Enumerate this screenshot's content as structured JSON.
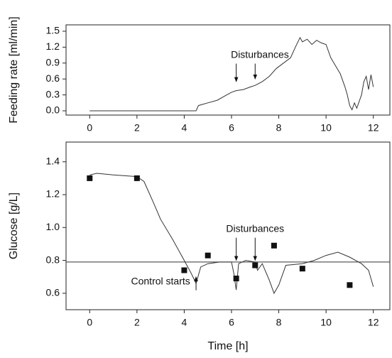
{
  "chart_data": [
    {
      "type": "line",
      "ylabel": "Feeding rate [ml/min]",
      "xlim": [
        -1,
        12.7
      ],
      "ylim": [
        -0.08,
        1.62
      ],
      "xticks": [
        0,
        2,
        4,
        6,
        8,
        10,
        12
      ],
      "yticks": [
        {
          "value": 0,
          "label": "0.0"
        },
        0.3,
        0.6,
        0.9,
        1.2,
        1.5
      ],
      "series": [
        {
          "color": "#333333",
          "x": [
            0,
            4.5,
            4.6,
            5.0,
            5.4,
            5.8,
            6.0,
            6.2,
            6.5,
            6.8,
            7.0,
            7.3,
            7.6,
            7.9,
            8.2,
            8.5,
            8.7,
            8.9,
            9.0,
            9.2,
            9.4,
            9.6,
            9.8,
            10.0,
            10.2,
            10.4,
            10.6,
            10.8,
            10.9,
            11.0,
            11.1,
            11.2,
            11.3,
            11.5,
            11.6,
            11.7,
            11.8,
            11.9,
            12.0
          ],
          "values": [
            0,
            0,
            0.1,
            0.15,
            0.2,
            0.3,
            0.35,
            0.38,
            0.4,
            0.45,
            0.48,
            0.55,
            0.65,
            0.8,
            0.9,
            1.0,
            1.2,
            1.38,
            1.3,
            1.35,
            1.25,
            1.33,
            1.28,
            1.25,
            1.0,
            0.85,
            0.7,
            0.45,
            0.3,
            0.1,
            0.02,
            0.15,
            0.05,
            0.3,
            0.55,
            0.65,
            0.4,
            0.68,
            0.45
          ]
        }
      ],
      "annotations": [
        {
          "text": "Disturbances",
          "x": 7.2,
          "y": 1.05,
          "arrows": [
            {
              "x": 6.2,
              "y": 0.55
            },
            {
              "x": 7.0,
              "y": 0.6
            }
          ]
        }
      ]
    },
    {
      "type": "line",
      "ylabel": "Glucose [g/L]",
      "xlabel": "Time [h]",
      "xlim": [
        -1,
        12.7
      ],
      "ylim": [
        0.5,
        1.52
      ],
      "xticks": [
        0,
        2,
        4,
        6,
        8,
        10,
        12
      ],
      "yticks": [
        0.6,
        0.8,
        {
          "value": 1,
          "label": "1.0"
        },
        1.2,
        1.4
      ],
      "hlines": [
        0.79
      ],
      "series": [
        {
          "color": "#333333",
          "x": [
            0,
            0.3,
            1.0,
            2.0,
            2.3,
            2.7,
            3.0,
            3.5,
            4.0,
            4.3,
            4.5,
            4.7,
            5.0,
            5.5,
            6.0,
            6.1,
            6.2,
            6.3,
            6.6,
            7.0,
            7.1,
            7.3,
            7.6,
            7.8,
            8.0,
            8.3,
            9.0,
            9.5,
            10.0,
            10.5,
            11.0,
            11.5,
            11.8,
            12.0
          ],
          "values": [
            1.32,
            1.33,
            1.32,
            1.31,
            1.28,
            1.15,
            1.05,
            0.93,
            0.8,
            0.72,
            0.66,
            0.76,
            0.78,
            0.79,
            0.79,
            0.72,
            0.62,
            0.78,
            0.8,
            0.79,
            0.74,
            0.78,
            0.68,
            0.6,
            0.65,
            0.77,
            0.78,
            0.8,
            0.83,
            0.85,
            0.82,
            0.78,
            0.74,
            0.64
          ]
        },
        {
          "type": "scatter",
          "color": "#111111",
          "x": [
            0,
            2,
            4,
            5,
            6.2,
            7,
            7.8,
            9,
            11
          ],
          "values": [
            1.3,
            1.3,
            0.74,
            0.83,
            0.69,
            0.77,
            0.89,
            0.75,
            0.65
          ]
        }
      ],
      "annotations": [
        {
          "text": "Disturbances",
          "x": 7.0,
          "y": 0.99,
          "arrows": [
            {
              "x": 6.2,
              "y": 0.8
            },
            {
              "x": 7.0,
              "y": 0.8
            }
          ]
        },
        {
          "text": "Control starts",
          "x": 3.0,
          "y": 0.67,
          "arrows": [
            {
              "x": 4.5,
              "y": 0.7
            }
          ]
        }
      ]
    }
  ]
}
